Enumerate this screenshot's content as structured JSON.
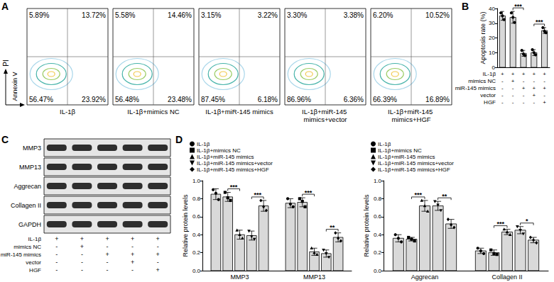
{
  "flow_cytometry": {
    "panel": "A",
    "x_label": "Annexin V",
    "y_label": "PI",
    "plots": [
      {
        "name": "IL-1β",
        "quadrants": {
          "upper_left": {
            "value": 5.89,
            "label": "5.89%"
          },
          "upper_right": {
            "value": 13.72,
            "label": "13.72%"
          },
          "lower_left": {
            "value": 56.47,
            "label": "56.47%"
          },
          "lower_right": {
            "value": 23.92,
            "label": "23.92%"
          }
        }
      },
      {
        "name": "IL-1β+mimics NC",
        "quadrants": {
          "upper_left": {
            "value": 5.58,
            "label": "5.58%"
          },
          "upper_right": {
            "value": 14.46,
            "label": "14.46%"
          },
          "lower_left": {
            "value": 56.48,
            "label": "56.48%"
          },
          "lower_right": {
            "value": 23.48,
            "label": "23.48%"
          }
        }
      },
      {
        "name": "IL-1β+miR-145 mimics",
        "quadrants": {
          "upper_left": {
            "value": 3.15,
            "label": "3.15%"
          },
          "upper_right": {
            "value": 3.22,
            "label": "3.22%"
          },
          "lower_left": {
            "value": 87.45,
            "label": "87.45%"
          },
          "lower_right": {
            "value": 6.18,
            "label": "6.18%"
          }
        }
      },
      {
        "name": "IL-1β+miR-145 mimics+vector",
        "quadrants": {
          "upper_left": {
            "value": 3.3,
            "label": "3.30%"
          },
          "upper_right": {
            "value": 3.38,
            "label": "3.38%"
          },
          "lower_left": {
            "value": 86.96,
            "label": "86.96%"
          },
          "lower_right": {
            "value": 6.36,
            "label": "6.36%"
          }
        }
      },
      {
        "name": "IL-1β+miR-145 mimics+HGF",
        "quadrants": {
          "upper_left": {
            "value": 6.2,
            "label": "6.20%"
          },
          "upper_right": {
            "value": 10.52,
            "label": "10.52%"
          },
          "lower_left": {
            "value": 66.39,
            "label": "66.39%"
          },
          "lower_right": {
            "value": 16.89,
            "label": "16.89%"
          }
        }
      }
    ]
  },
  "chart_data": [
    {
      "type": "bar",
      "panel": "B",
      "y_label": "Apoptosis rate (%)",
      "categories": [
        null,
        null,
        null,
        null,
        null
      ],
      "values": [
        35,
        34,
        9.5,
        10,
        25
      ],
      "errors": [
        3,
        4,
        2,
        2,
        2
      ],
      "points": [
        [
          37,
          35,
          32.5
        ],
        [
          37,
          34,
          30.5
        ],
        [
          11.5,
          9,
          8
        ],
        [
          12,
          10,
          8.5
        ],
        [
          27,
          24.5,
          23.5
        ]
      ],
      "color": "#d9d9d9",
      "marker": "circle",
      "ylim": [
        0,
        40
      ],
      "yticks": [
        0,
        10,
        20,
        30,
        40
      ],
      "grid": false,
      "conditions": [
        {
          "name": "IL-1β",
          "marks": [
            "+",
            "+",
            "+",
            "+",
            "+"
          ]
        },
        {
          "name": "mimics NC",
          "marks": [
            "-",
            "+",
            "-",
            "-",
            "-"
          ]
        },
        {
          "name": "miR-145 mimics",
          "marks": [
            "-",
            "-",
            "+",
            "+",
            "+"
          ]
        },
        {
          "name": "vector",
          "marks": [
            "-",
            "-",
            "-",
            "+",
            "-"
          ]
        },
        {
          "name": "HGF",
          "marks": [
            "-",
            "-",
            "-",
            "-",
            "+"
          ]
        }
      ],
      "annotations": [
        {
          "bars": [
            1,
            2
          ],
          "text": "***"
        },
        {
          "bars": [
            3,
            4
          ],
          "text": "***"
        }
      ]
    },
    {
      "type": "bar",
      "panel": "D",
      "y_label": "Relative protein levels",
      "categories": [
        "MMP3",
        "MMP13"
      ],
      "series": [
        {
          "name": "IL-1β",
          "marker": "circle",
          "values": [
            0.85,
            0.75
          ],
          "errors": [
            0.06,
            0.05
          ],
          "points": [
            [
              0.9,
              0.86,
              0.79
            ],
            [
              0.8,
              0.74,
              0.71
            ]
          ]
        },
        {
          "name": "IL-1β+mimics NC",
          "marker": "square",
          "values": [
            0.82,
            0.76
          ],
          "errors": [
            0.05,
            0.05
          ],
          "points": [
            [
              0.87,
              0.81,
              0.78
            ],
            [
              0.8,
              0.77,
              0.71
            ]
          ]
        },
        {
          "name": "IL-1β+miR-145 mimics",
          "marker": "triangle",
          "values": [
            0.4,
            0.21
          ],
          "errors": [
            0.05,
            0.04
          ],
          "points": [
            [
              0.45,
              0.4,
              0.36
            ],
            [
              0.25,
              0.2,
              0.18
            ]
          ]
        },
        {
          "name": "IL-1β+miR-145 mimics+vector",
          "marker": "triangle-down",
          "values": [
            0.39,
            0.19
          ],
          "errors": [
            0.05,
            0.04
          ],
          "points": [
            [
              0.44,
              0.38,
              0.35
            ],
            [
              0.23,
              0.19,
              0.15
            ]
          ]
        },
        {
          "name": "IL-1β+miR-145 mimics+HGF",
          "marker": "diamond",
          "values": [
            0.72,
            0.37
          ],
          "errors": [
            0.06,
            0.05
          ],
          "points": [
            [
              0.78,
              0.71,
              0.67
            ],
            [
              0.42,
              0.36,
              0.33
            ]
          ]
        }
      ],
      "color": "#d9d9d9",
      "ylim": [
        0,
        1
      ],
      "yticks": [
        {
          "value": 0,
          "label": "0.0"
        },
        {
          "value": 0.2,
          "label": "0.2"
        },
        {
          "value": 0.4,
          "label": "0.4"
        },
        {
          "value": 0.6,
          "label": "0.6"
        },
        {
          "value": 0.8,
          "label": "0.8"
        },
        {
          "value": 1,
          "label": "1.0"
        }
      ],
      "grid": false,
      "legend": "top",
      "annotations": [
        {
          "category": "MMP3",
          "between": [
            "IL-1β+mimics NC",
            "IL-1β+miR-145 mimics"
          ],
          "text": "***"
        },
        {
          "category": "MMP3",
          "between": [
            "IL-1β+miR-145 mimics+vector",
            "IL-1β+miR-145 mimics+HGF"
          ],
          "text": "***"
        },
        {
          "category": "MMP13",
          "between": [
            "IL-1β+mimics NC",
            "IL-1β+miR-145 mimics"
          ],
          "text": "***"
        },
        {
          "category": "MMP13",
          "between": [
            "IL-1β+miR-145 mimics+vector",
            "IL-1β+miR-145 mimics+HGF"
          ],
          "text": "**"
        }
      ]
    },
    {
      "type": "bar",
      "y_label": "Relative protein levels",
      "categories": [
        "Aggrecan",
        "Collagen II"
      ],
      "series": [
        {
          "name": "IL-1β",
          "marker": "circle",
          "values": [
            0.36,
            0.22
          ],
          "errors": [
            0.04,
            0.03
          ],
          "points": [
            [
              0.4,
              0.36,
              0.32
            ],
            [
              0.25,
              0.22,
              0.19
            ]
          ]
        },
        {
          "name": "IL-1β+mimics NC",
          "marker": "square",
          "values": [
            0.35,
            0.2
          ],
          "errors": [
            0.02,
            0.03
          ],
          "points": [
            [
              0.37,
              0.35,
              0.33
            ],
            [
              0.23,
              0.19,
              0.18
            ]
          ]
        },
        {
          "name": "IL-1β+miR-145 mimics",
          "marker": "triangle",
          "values": [
            0.72,
            0.43
          ],
          "errors": [
            0.06,
            0.03
          ],
          "points": [
            [
              0.78,
              0.72,
              0.66
            ],
            [
              0.46,
              0.43,
              0.4
            ]
          ]
        },
        {
          "name": "IL-1β+miR-145 mimics+vector",
          "marker": "triangle-down",
          "values": [
            0.72,
            0.45
          ],
          "errors": [
            0.05,
            0.04
          ],
          "points": [
            [
              0.77,
              0.73,
              0.67
            ],
            [
              0.49,
              0.45,
              0.41
            ]
          ]
        },
        {
          "name": "IL-1β+miR-145 mimics+HGF",
          "marker": "diamond",
          "values": [
            0.52,
            0.34
          ],
          "errors": [
            0.05,
            0.03
          ],
          "points": [
            [
              0.57,
              0.51,
              0.48
            ],
            [
              0.37,
              0.34,
              0.31
            ]
          ]
        }
      ],
      "color": "#d9d9d9",
      "ylim": [
        0,
        1
      ],
      "yticks": [
        {
          "value": 0,
          "label": "0.0"
        },
        {
          "value": 0.2,
          "label": "0.2"
        },
        {
          "value": 0.4,
          "label": "0.4"
        },
        {
          "value": 0.6,
          "label": "0.6"
        },
        {
          "value": 0.8,
          "label": "0.8"
        },
        {
          "value": 1,
          "label": "1.0"
        }
      ],
      "grid": false,
      "legend": "top",
      "annotations": [
        {
          "category": "Aggrecan",
          "between": [
            "IL-1β+mimics NC",
            "IL-1β+miR-145 mimics"
          ],
          "text": "***"
        },
        {
          "category": "Aggrecan",
          "between": [
            "IL-1β+miR-145 mimics+vector",
            "IL-1β+miR-145 mimics+HGF"
          ],
          "text": "**"
        },
        {
          "category": "Collagen II",
          "between": [
            "IL-1β+mimics NC",
            "IL-1β+miR-145 mimics"
          ],
          "text": "***"
        },
        {
          "category": "Collagen II",
          "between": [
            "IL-1β+miR-145 mimics+vector",
            "IL-1β+miR-145 mimics+HGF"
          ],
          "text": "*"
        }
      ]
    }
  ],
  "western_blot": {
    "panel": "C",
    "bands": [
      "MMP3",
      "MMP13",
      "Aggrecan",
      "Collagen II",
      "GAPDH"
    ],
    "conditions": [
      {
        "name": "IL-1β",
        "marks": [
          "+",
          "+",
          "+",
          "+",
          "+"
        ]
      },
      {
        "name": "mimics NC",
        "marks": [
          "-",
          "+",
          "-",
          "-",
          "-"
        ]
      },
      {
        "name": "miR-145 mimics",
        "marks": [
          "-",
          "-",
          "+",
          "+",
          "+"
        ]
      },
      {
        "name": "vector",
        "marks": [
          "-",
          "-",
          "-",
          "+",
          "-"
        ]
      },
      {
        "name": "HGF",
        "marks": [
          "-",
          "-",
          "-",
          "-",
          "+"
        ]
      }
    ]
  }
}
